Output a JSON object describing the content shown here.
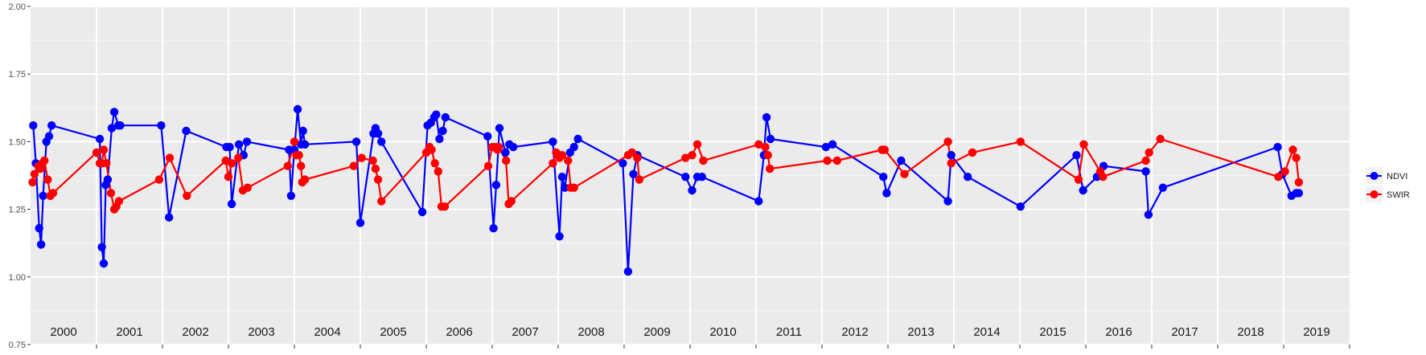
{
  "chart_data": {
    "type": "line",
    "title": "",
    "xlabel": "",
    "ylabel": "",
    "ylim": [
      0.75,
      2.0
    ],
    "yticks": [
      "0.75",
      "1.00",
      "1.25",
      "1.50",
      "1.75",
      "2.00"
    ],
    "xlim": [
      2000.0,
      2020.0
    ],
    "year_labels": [
      "2000",
      "2001",
      "2002",
      "2003",
      "2004",
      "2005",
      "2006",
      "2007",
      "2008",
      "2009",
      "2010",
      "2011",
      "2012",
      "2013",
      "2014",
      "2015",
      "2016",
      "2017",
      "2018",
      "2019"
    ],
    "grid": true,
    "legend_position": "right",
    "series": [
      {
        "name": "NDVI",
        "color": "#0000ff",
        "points": [
          [
            2000.04,
            1.56
          ],
          [
            2000.08,
            1.42
          ],
          [
            2000.13,
            1.18
          ],
          [
            2000.16,
            1.12
          ],
          [
            2000.19,
            1.3
          ],
          [
            2000.24,
            1.5
          ],
          [
            2000.28,
            1.52
          ],
          [
            2000.32,
            1.56
          ],
          [
            2001.05,
            1.51
          ],
          [
            2001.08,
            1.11
          ],
          [
            2001.11,
            1.05
          ],
          [
            2001.14,
            1.34
          ],
          [
            2001.17,
            1.36
          ],
          [
            2001.23,
            1.55
          ],
          [
            2001.27,
            1.61
          ],
          [
            2001.33,
            1.56
          ],
          [
            2001.36,
            1.56
          ],
          [
            2001.98,
            1.56
          ],
          [
            2002.1,
            1.22
          ],
          [
            2002.36,
            1.54
          ],
          [
            2002.97,
            1.48
          ],
          [
            2003.02,
            1.48
          ],
          [
            2003.05,
            1.27
          ],
          [
            2003.16,
            1.49
          ],
          [
            2003.23,
            1.45
          ],
          [
            2003.28,
            1.5
          ],
          [
            2003.92,
            1.47
          ],
          [
            2003.95,
            1.3
          ],
          [
            2004.0,
            1.47
          ],
          [
            2004.05,
            1.62
          ],
          [
            2004.1,
            1.49
          ],
          [
            2004.13,
            1.54
          ],
          [
            2004.16,
            1.49
          ],
          [
            2004.94,
            1.5
          ],
          [
            2005.0,
            1.2
          ],
          [
            2005.2,
            1.53
          ],
          [
            2005.23,
            1.55
          ],
          [
            2005.27,
            1.53
          ],
          [
            2005.32,
            1.5
          ],
          [
            2005.94,
            1.24
          ],
          [
            2006.02,
            1.56
          ],
          [
            2006.07,
            1.57
          ],
          [
            2006.12,
            1.59
          ],
          [
            2006.15,
            1.6
          ],
          [
            2006.2,
            1.51
          ],
          [
            2006.25,
            1.54
          ],
          [
            2006.29,
            1.59
          ],
          [
            2006.93,
            1.52
          ],
          [
            2007.02,
            1.18
          ],
          [
            2007.06,
            1.34
          ],
          [
            2007.11,
            1.55
          ],
          [
            2007.2,
            1.46
          ],
          [
            2007.26,
            1.49
          ],
          [
            2007.32,
            1.48
          ],
          [
            2007.92,
            1.5
          ],
          [
            2008.02,
            1.15
          ],
          [
            2008.06,
            1.37
          ],
          [
            2008.1,
            1.33
          ],
          [
            2008.18,
            1.46
          ],
          [
            2008.24,
            1.48
          ],
          [
            2008.3,
            1.51
          ],
          [
            2008.98,
            1.42
          ],
          [
            2009.06,
            1.02
          ],
          [
            2009.14,
            1.38
          ],
          [
            2009.2,
            1.45
          ],
          [
            2009.93,
            1.37
          ],
          [
            2010.03,
            1.32
          ],
          [
            2010.11,
            1.37
          ],
          [
            2010.18,
            1.37
          ],
          [
            2011.04,
            1.28
          ],
          [
            2011.12,
            1.45
          ],
          [
            2011.16,
            1.59
          ],
          [
            2011.22,
            1.51
          ],
          [
            2012.06,
            1.48
          ],
          [
            2012.16,
            1.49
          ],
          [
            2012.93,
            1.37
          ],
          [
            2012.98,
            1.31
          ],
          [
            2013.2,
            1.43
          ],
          [
            2013.91,
            1.28
          ],
          [
            2013.96,
            1.45
          ],
          [
            2014.21,
            1.37
          ],
          [
            2015.01,
            1.26
          ],
          [
            2015.86,
            1.45
          ],
          [
            2015.96,
            1.32
          ],
          [
            2016.17,
            1.37
          ],
          [
            2016.27,
            1.41
          ],
          [
            2016.91,
            1.39
          ],
          [
            2016.95,
            1.23
          ],
          [
            2017.17,
            1.33
          ],
          [
            2018.91,
            1.48
          ],
          [
            2018.98,
            1.38
          ],
          [
            2019.12,
            1.3
          ],
          [
            2019.19,
            1.31
          ],
          [
            2019.23,
            1.31
          ]
        ]
      },
      {
        "name": "SWIR",
        "color": "#ff0000",
        "points": [
          [
            2000.03,
            1.35
          ],
          [
            2000.06,
            1.38
          ],
          [
            2000.12,
            1.41
          ],
          [
            2000.15,
            1.4
          ],
          [
            2000.18,
            1.42
          ],
          [
            2000.21,
            1.43
          ],
          [
            2000.26,
            1.36
          ],
          [
            2000.3,
            1.3
          ],
          [
            2000.34,
            1.31
          ],
          [
            2001.0,
            1.46
          ],
          [
            2001.05,
            1.42
          ],
          [
            2001.08,
            1.42
          ],
          [
            2001.11,
            1.47
          ],
          [
            2001.15,
            1.42
          ],
          [
            2001.22,
            1.31
          ],
          [
            2001.27,
            1.25
          ],
          [
            2001.3,
            1.26
          ],
          [
            2001.34,
            1.28
          ],
          [
            2001.95,
            1.36
          ],
          [
            2002.11,
            1.44
          ],
          [
            2002.37,
            1.3
          ],
          [
            2002.96,
            1.43
          ],
          [
            2003.0,
            1.37
          ],
          [
            2003.05,
            1.42
          ],
          [
            2003.15,
            1.44
          ],
          [
            2003.22,
            1.32
          ],
          [
            2003.29,
            1.33
          ],
          [
            2003.9,
            1.41
          ],
          [
            2004.0,
            1.5
          ],
          [
            2004.03,
            1.45
          ],
          [
            2004.07,
            1.45
          ],
          [
            2004.1,
            1.41
          ],
          [
            2004.12,
            1.35
          ],
          [
            2004.16,
            1.36
          ],
          [
            2004.9,
            1.41
          ],
          [
            2005.02,
            1.44
          ],
          [
            2005.19,
            1.43
          ],
          [
            2005.23,
            1.4
          ],
          [
            2005.27,
            1.36
          ],
          [
            2005.32,
            1.28
          ],
          [
            2006.0,
            1.46
          ],
          [
            2006.05,
            1.48
          ],
          [
            2006.08,
            1.47
          ],
          [
            2006.13,
            1.42
          ],
          [
            2006.18,
            1.39
          ],
          [
            2006.23,
            1.26
          ],
          [
            2006.28,
            1.26
          ],
          [
            2006.94,
            1.41
          ],
          [
            2007.0,
            1.48
          ],
          [
            2007.05,
            1.48
          ],
          [
            2007.08,
            1.47
          ],
          [
            2007.1,
            1.48
          ],
          [
            2007.21,
            1.43
          ],
          [
            2007.25,
            1.27
          ],
          [
            2007.29,
            1.28
          ],
          [
            2007.92,
            1.42
          ],
          [
            2007.97,
            1.46
          ],
          [
            2008.02,
            1.44
          ],
          [
            2008.06,
            1.45
          ],
          [
            2008.15,
            1.43
          ],
          [
            2008.19,
            1.33
          ],
          [
            2008.24,
            1.33
          ],
          [
            2009.06,
            1.45
          ],
          [
            2009.12,
            1.46
          ],
          [
            2009.2,
            1.44
          ],
          [
            2009.23,
            1.36
          ],
          [
            2009.93,
            1.44
          ],
          [
            2010.03,
            1.45
          ],
          [
            2010.11,
            1.49
          ],
          [
            2010.2,
            1.43
          ],
          [
            2011.04,
            1.49
          ],
          [
            2011.14,
            1.48
          ],
          [
            2011.18,
            1.45
          ],
          [
            2011.21,
            1.4
          ],
          [
            2012.08,
            1.43
          ],
          [
            2012.23,
            1.43
          ],
          [
            2012.91,
            1.47
          ],
          [
            2012.95,
            1.47
          ],
          [
            2013.25,
            1.38
          ],
          [
            2013.91,
            1.5
          ],
          [
            2013.96,
            1.42
          ],
          [
            2014.28,
            1.46
          ],
          [
            2015.01,
            1.5
          ],
          [
            2015.89,
            1.36
          ],
          [
            2015.97,
            1.49
          ],
          [
            2016.22,
            1.39
          ],
          [
            2016.26,
            1.37
          ],
          [
            2016.91,
            1.43
          ],
          [
            2016.96,
            1.46
          ],
          [
            2017.13,
            1.51
          ],
          [
            2018.92,
            1.37
          ],
          [
            2019.02,
            1.39
          ],
          [
            2019.14,
            1.47
          ],
          [
            2019.19,
            1.44
          ],
          [
            2019.23,
            1.35
          ]
        ]
      }
    ]
  }
}
